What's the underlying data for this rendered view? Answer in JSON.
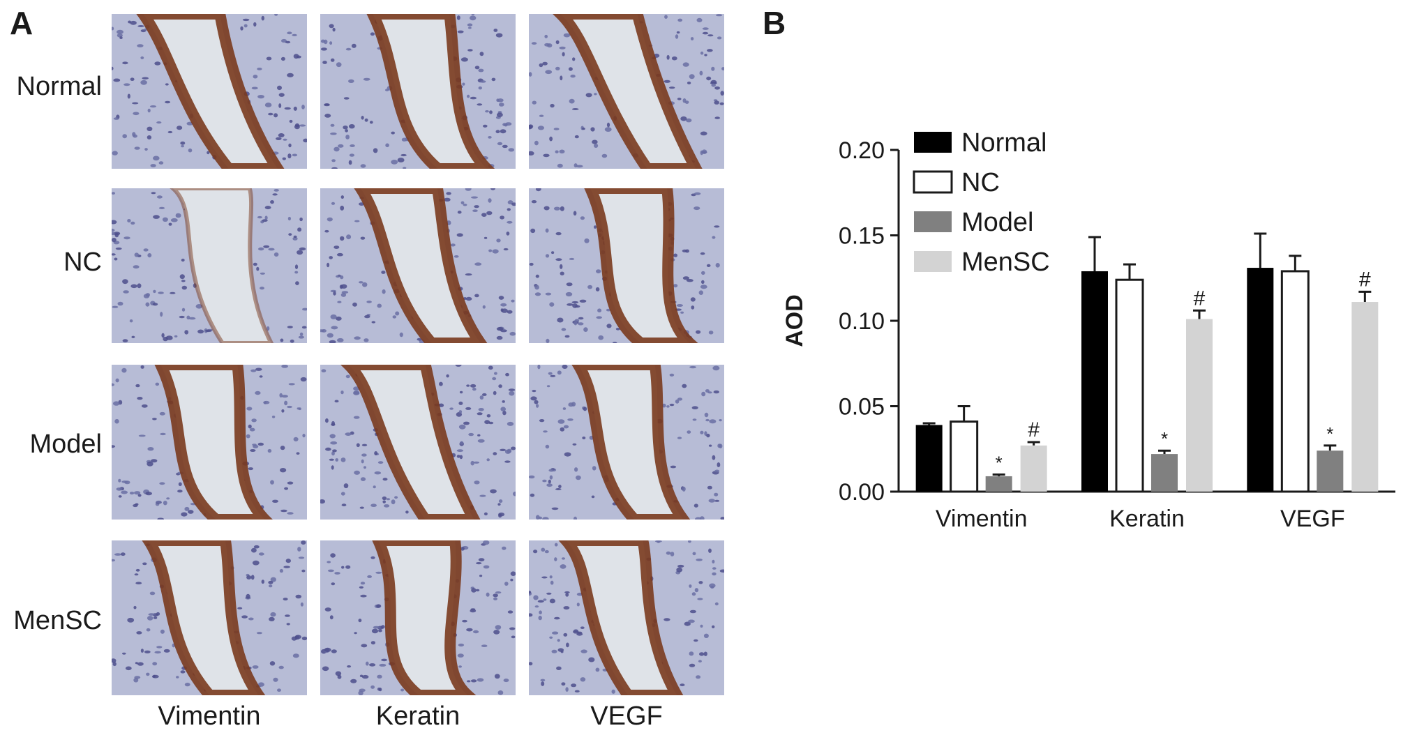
{
  "panel_a": {
    "letter": "A",
    "rows": [
      "Normal",
      "NC",
      "Model",
      "MenSC"
    ],
    "columns": [
      "Vimentin",
      "Keratin",
      "VEGF"
    ]
  },
  "panel_b": {
    "letter": "B"
  },
  "colors": {
    "Normal": "#000000",
    "NC": "#ffffff",
    "Model": "#808080",
    "MenSC": "#d3d3d3",
    "stain_brown": "#7a3a1e",
    "stain_blue": "#8a93bd",
    "background": "#dfe3e8"
  },
  "chart_data": {
    "type": "bar",
    "ylabel": "AOD",
    "xlabel": "",
    "ylim": [
      0,
      0.2
    ],
    "yticks": [
      "0.00",
      "0.05",
      "0.10",
      "0.15",
      "0.20"
    ],
    "categories": [
      "Vimentin",
      "Keratin",
      "VEGF"
    ],
    "legend_position": "top-left",
    "series": [
      {
        "name": "Normal",
        "values": [
          0.039,
          0.129,
          0.131
        ],
        "errors": [
          0.001,
          0.02,
          0.02
        ],
        "marks": [
          "",
          "",
          ""
        ]
      },
      {
        "name": "NC",
        "values": [
          0.041,
          0.124,
          0.129
        ],
        "errors": [
          0.009,
          0.009,
          0.009
        ],
        "marks": [
          "",
          "",
          ""
        ]
      },
      {
        "name": "Model",
        "values": [
          0.009,
          0.022,
          0.024
        ],
        "errors": [
          0.001,
          0.002,
          0.003
        ],
        "marks": [
          "*",
          "*",
          "*"
        ]
      },
      {
        "name": "MenSC",
        "values": [
          0.027,
          0.101,
          0.111
        ],
        "errors": [
          0.002,
          0.005,
          0.006
        ],
        "marks": [
          "#",
          "#",
          "#"
        ]
      }
    ]
  }
}
